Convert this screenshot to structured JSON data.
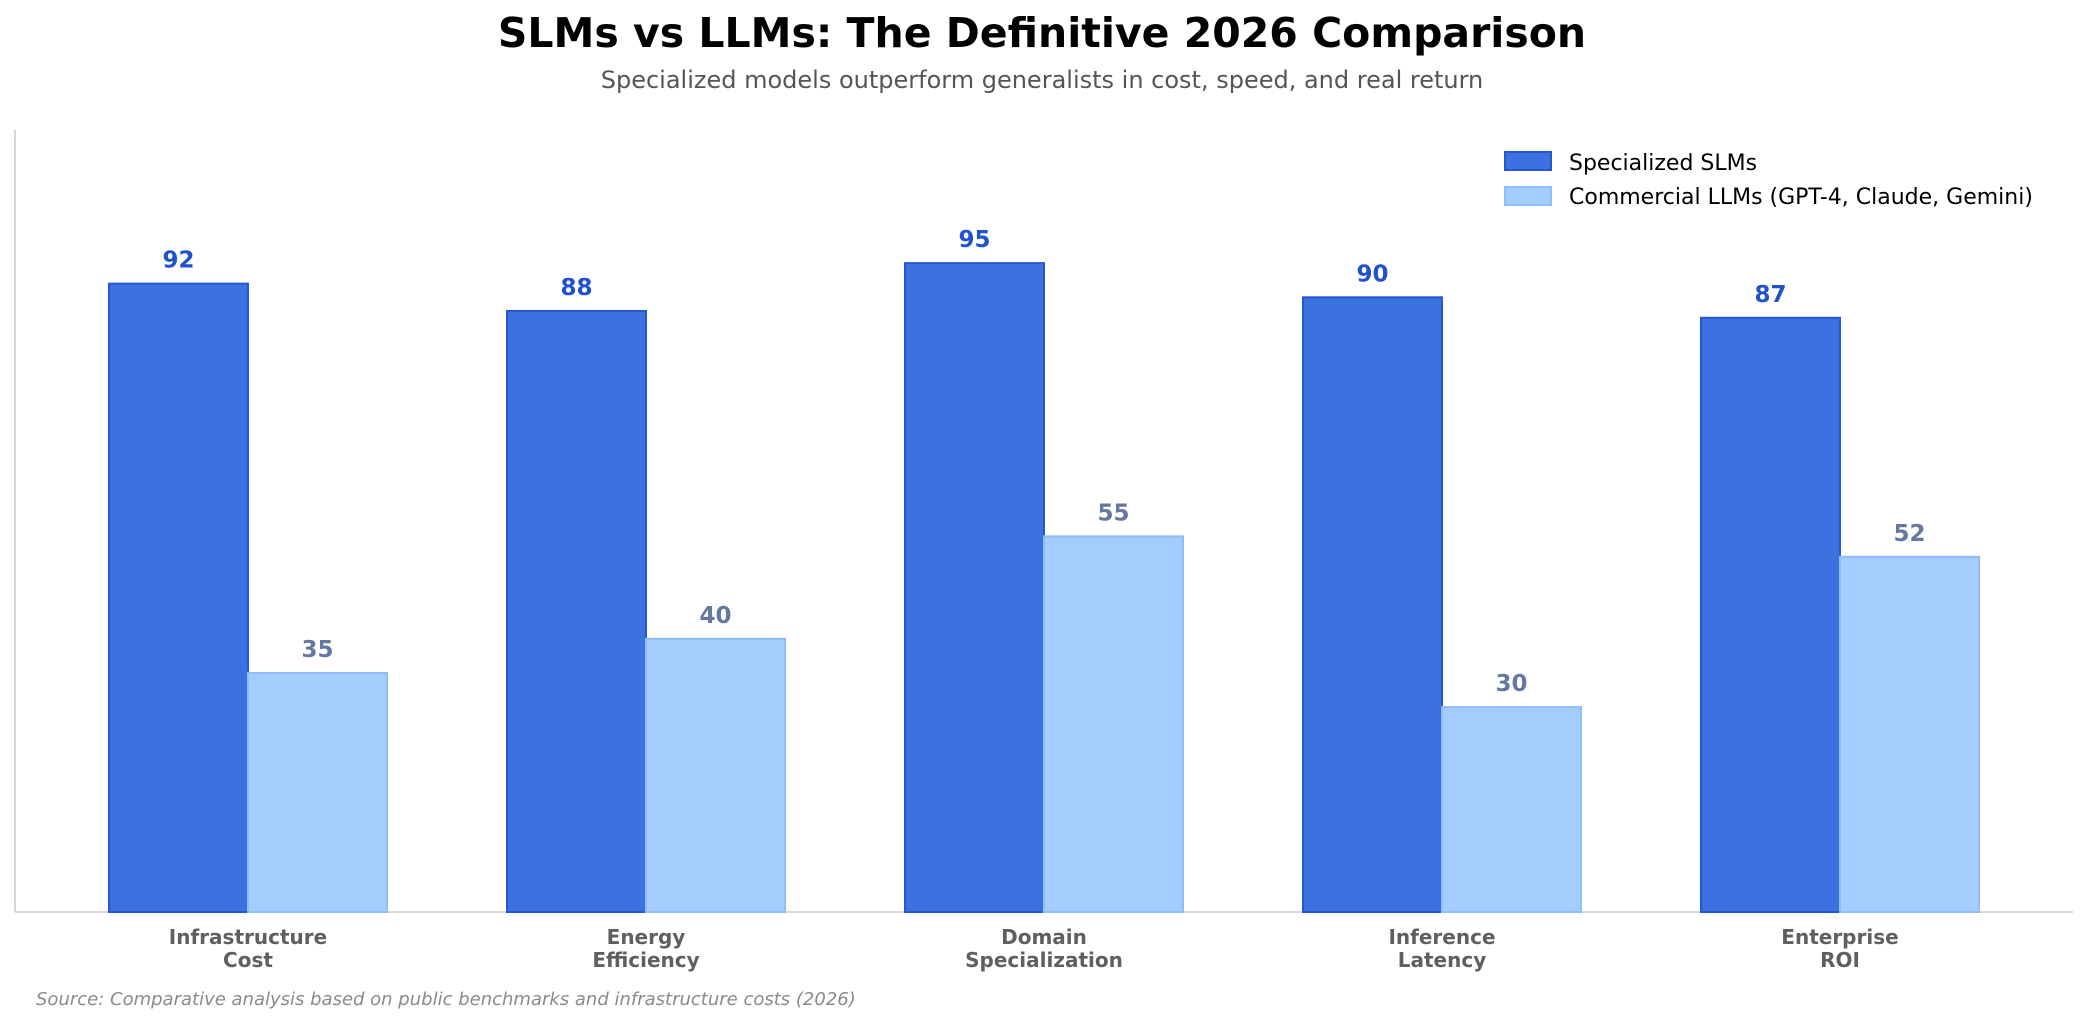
{
  "chart_data": {
    "type": "bar",
    "title": "SLMs vs LLMs: The Definitive 2026 Comparison",
    "subtitle": "Specialized models outperform generalists in cost, speed, and real return",
    "categories": [
      [
        "Infrastructure",
        "Cost"
      ],
      [
        "Energy",
        "Efficiency"
      ],
      [
        "Domain",
        "Specialization"
      ],
      [
        "Inference",
        "Latency"
      ],
      [
        "Enterprise",
        "ROI"
      ]
    ],
    "series": [
      {
        "name": "Specialized SLMs",
        "values": [
          92,
          88,
          95,
          90,
          87
        ],
        "color": "#3c72e0",
        "edge_color": "#2756d4",
        "label_color": "#1f52cc"
      },
      {
        "name": "Commercial LLMs (GPT-4, Claude, Gemini)",
        "values": [
          35,
          40,
          55,
          30,
          52
        ],
        "color": "#a4ccfc",
        "edge_color": "#90bdf7",
        "label_color": "#6478a0"
      }
    ],
    "ylim": [
      0,
      115
    ],
    "xlabel": "",
    "ylabel": "",
    "grid": false,
    "legend_position": "top-right",
    "source": "Source: Comparative analysis based on public benchmarks and infrastructure costs (2026)"
  }
}
